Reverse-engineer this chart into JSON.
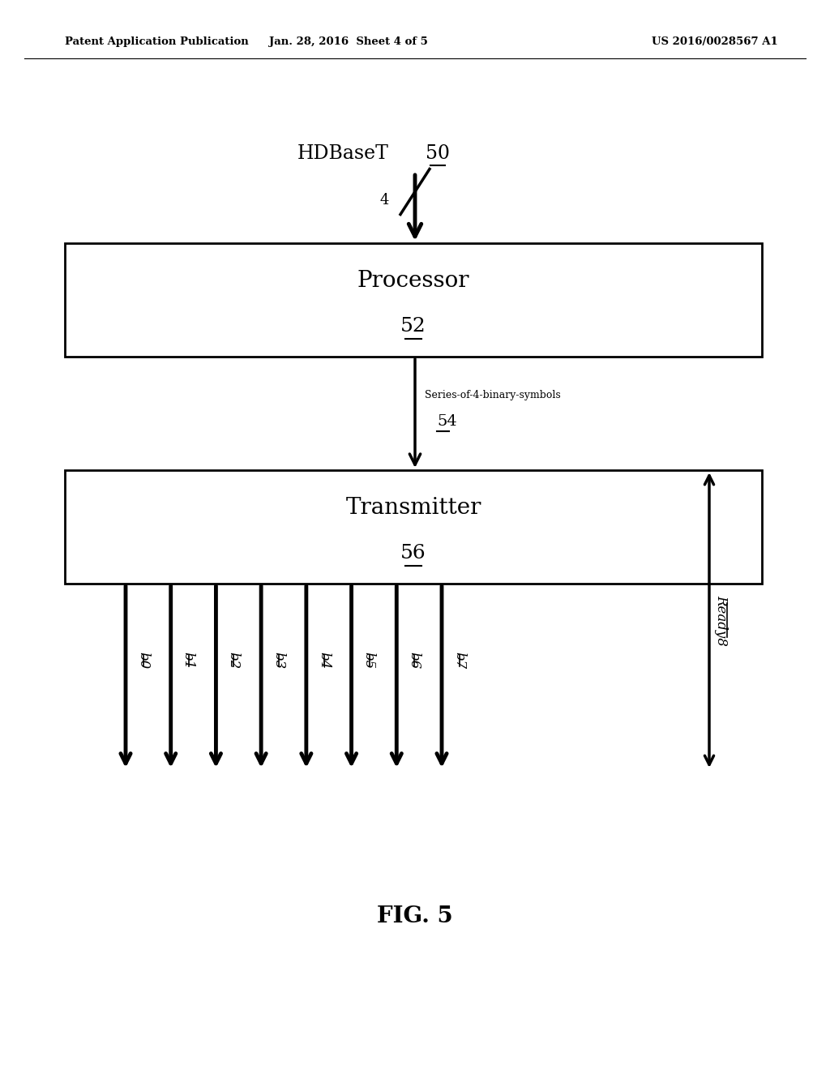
{
  "bg_color": "#ffffff",
  "header_left": "Patent Application Publication",
  "header_center": "Jan. 28, 2016  Sheet 4 of 5",
  "header_right": "US 2016/0028567 A1",
  "header_fontsize": 9.5,
  "hdbaset_label": "HDBaseT",
  "hdbaset_num": "50",
  "bus_count": "4",
  "processor_label": "Processor",
  "processor_num": "52",
  "series_label": "Series-of-4-binary-symbols",
  "series_num": "54",
  "transmitter_label": "Transmitter",
  "transmitter_num": "56",
  "output_labels": [
    "b0",
    "b1",
    "b2",
    "b3",
    "b4",
    "b5",
    "b6",
    "b7"
  ],
  "ready_label": "Ready8",
  "fig_label": "FIG. 5"
}
